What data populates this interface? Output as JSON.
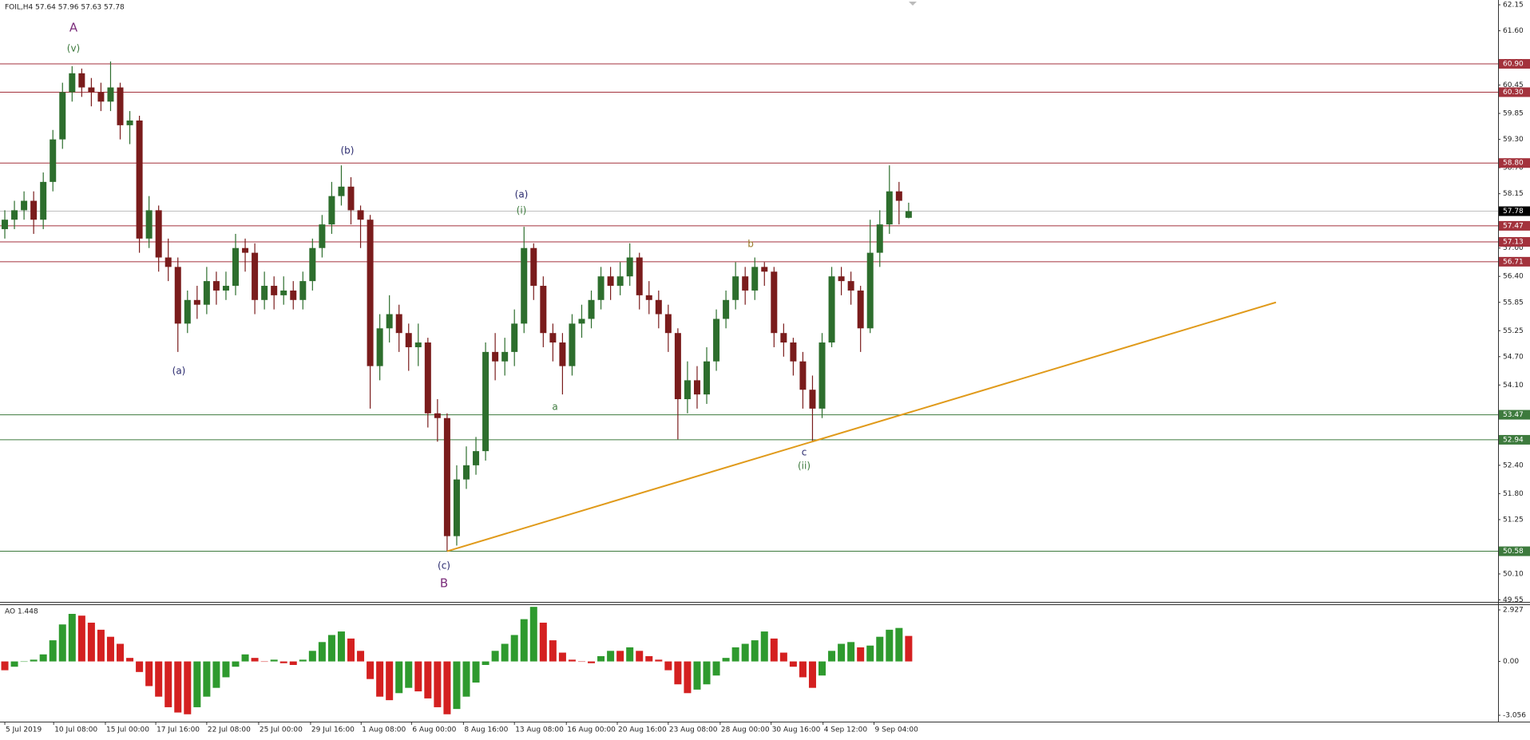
{
  "chart_data": [
    {
      "type": "candlestick",
      "title": "FOIL,H4 57.64 57.96 57.63 57.78",
      "open": [
        57.4,
        57.6,
        57.8,
        58.0,
        57.6,
        58.4,
        59.3,
        60.3,
        60.7,
        60.4,
        60.3,
        60.1,
        60.4,
        59.6,
        59.7,
        57.2,
        57.8,
        56.8,
        56.6,
        55.4,
        55.9,
        55.8,
        56.3,
        56.1,
        56.2,
        57.0,
        56.9,
        55.9,
        56.2,
        56.0,
        56.1,
        55.9,
        56.3,
        57.0,
        57.5,
        58.1,
        58.3,
        57.8,
        57.6,
        54.5,
        55.3,
        55.6,
        55.2,
        54.9,
        55.0,
        53.5,
        53.4,
        50.9,
        52.1,
        52.4,
        52.7,
        54.8,
        54.6,
        54.8,
        55.4,
        57.0,
        56.2,
        55.2,
        55.0,
        54.5,
        55.4,
        55.5,
        55.9,
        56.4,
        56.2,
        56.4,
        56.8,
        56.0,
        55.9,
        55.6,
        55.2,
        53.8,
        54.2,
        53.9,
        54.6,
        55.5,
        55.9,
        56.4,
        56.1,
        56.6,
        56.5,
        55.2,
        55.0,
        54.6,
        54.0,
        53.6,
        55.0,
        56.4,
        56.3,
        56.1,
        55.3,
        56.9,
        57.5,
        58.2,
        57.64
      ],
      "high": [
        57.8,
        58.0,
        58.2,
        58.2,
        58.6,
        59.5,
        60.5,
        60.85,
        60.8,
        60.6,
        60.5,
        60.95,
        60.5,
        59.9,
        59.8,
        58.1,
        57.9,
        57.2,
        56.8,
        56.1,
        56.2,
        56.6,
        56.5,
        56.5,
        57.3,
        57.2,
        57.1,
        56.5,
        56.4,
        56.4,
        56.3,
        56.5,
        57.2,
        57.7,
        58.4,
        58.75,
        58.5,
        57.9,
        57.7,
        55.6,
        56.0,
        55.8,
        55.4,
        55.4,
        55.1,
        53.8,
        53.5,
        52.4,
        52.8,
        53.0,
        55.0,
        55.2,
        55.1,
        55.7,
        57.45,
        57.1,
        56.4,
        55.4,
        55.2,
        55.6,
        55.8,
        56.1,
        56.6,
        56.6,
        56.7,
        57.1,
        56.9,
        56.3,
        56.1,
        55.8,
        55.3,
        54.6,
        54.5,
        54.9,
        55.7,
        56.1,
        56.7,
        56.6,
        56.8,
        56.7,
        56.6,
        55.4,
        55.1,
        54.8,
        54.3,
        55.2,
        56.6,
        56.6,
        56.5,
        56.2,
        57.6,
        57.8,
        58.75,
        58.4,
        57.96
      ],
      "low": [
        57.2,
        57.4,
        57.6,
        57.3,
        57.4,
        58.2,
        59.1,
        60.1,
        60.2,
        60.0,
        59.9,
        59.9,
        59.3,
        59.2,
        56.9,
        57.0,
        56.5,
        56.3,
        54.8,
        55.2,
        55.5,
        55.6,
        55.8,
        55.9,
        56.0,
        56.5,
        55.6,
        55.7,
        55.7,
        55.8,
        55.7,
        55.7,
        56.1,
        56.8,
        57.3,
        57.9,
        57.5,
        57.0,
        53.6,
        54.2,
        55.0,
        54.8,
        54.4,
        54.5,
        53.2,
        52.9,
        50.58,
        50.7,
        51.9,
        52.2,
        52.5,
        54.2,
        54.3,
        54.5,
        55.2,
        55.9,
        54.9,
        54.6,
        53.9,
        54.3,
        55.1,
        55.3,
        55.7,
        55.9,
        56.0,
        56.2,
        55.7,
        55.6,
        55.3,
        54.8,
        52.95,
        53.5,
        53.6,
        53.7,
        54.4,
        55.3,
        55.7,
        55.8,
        55.9,
        56.2,
        54.9,
        54.7,
        54.3,
        53.6,
        52.9,
        53.4,
        54.9,
        56.0,
        55.8,
        54.8,
        55.2,
        56.6,
        57.3,
        57.5,
        57.63
      ],
      "close": [
        57.6,
        57.8,
        58.0,
        57.6,
        58.4,
        59.3,
        60.3,
        60.7,
        60.4,
        60.3,
        60.1,
        60.4,
        59.6,
        59.7,
        57.2,
        57.8,
        56.8,
        56.6,
        55.4,
        55.9,
        55.8,
        56.3,
        56.1,
        56.2,
        57.0,
        56.9,
        55.9,
        56.2,
        56.0,
        56.1,
        55.9,
        56.3,
        57.0,
        57.5,
        58.1,
        58.3,
        57.8,
        57.6,
        54.5,
        55.3,
        55.6,
        55.2,
        54.9,
        55.0,
        53.5,
        53.4,
        50.9,
        52.1,
        52.4,
        52.7,
        54.8,
        54.6,
        54.8,
        55.4,
        57.0,
        56.2,
        55.2,
        55.0,
        54.5,
        55.4,
        55.5,
        55.9,
        56.4,
        56.2,
        56.4,
        56.8,
        56.0,
        55.9,
        55.6,
        55.2,
        53.8,
        54.2,
        53.9,
        54.6,
        55.5,
        55.9,
        56.4,
        56.1,
        56.6,
        56.5,
        55.2,
        55.0,
        54.6,
        54.0,
        53.6,
        55.0,
        56.4,
        56.3,
        56.1,
        55.3,
        56.9,
        57.5,
        58.2,
        58.0,
        57.78
      ],
      "up_color": "#2d6e2d",
      "down_color": "#7a1c1c",
      "xlim": [
        -0.5,
        155.3
      ],
      "ylim": [
        49.55,
        62.15
      ],
      "yticks": [
        62.15,
        {
          "value": 61.6,
          "label": "61.60"
        },
        60.45,
        59.85,
        {
          "value": 59.3,
          "label": "59.30"
        },
        {
          "value": 58.7,
          "label": "58.70"
        },
        58.15,
        {
          "value": 57,
          "label": "57.00"
        },
        {
          "value": 56.4,
          "label": "56.40"
        },
        55.85,
        55.25,
        {
          "value": 54.7,
          "label": "54.70"
        },
        {
          "value": 54.1,
          "label": "54.10"
        },
        {
          "value": 52.4,
          "label": "52.40"
        },
        {
          "value": 51.8,
          "label": "51.80"
        },
        51.25,
        {
          "value": 50.1,
          "label": "50.10"
        },
        49.55
      ],
      "xticks": [
        {
          "value": 0,
          "label": "5 Jul 2019"
        },
        {
          "value": 5.08,
          "label": "10 Jul 08:00"
        },
        {
          "value": 10.46,
          "label": "15 Jul 00:00"
        },
        {
          "value": 15.7,
          "label": "17 Jul 16:00"
        },
        {
          "value": 21,
          "label": "22 Jul 08:00"
        },
        {
          "value": 26.4,
          "label": "25 Jul 00:00"
        },
        {
          "value": 31.8,
          "label": "29 Jul 16:00"
        },
        {
          "value": 37.06,
          "label": "1 Aug 08:00"
        },
        {
          "value": 42.3,
          "label": "6 Aug 00:00"
        },
        {
          "value": 47.7,
          "label": "8 Aug 16:00"
        },
        {
          "value": 53,
          "label": "13 Aug 08:00"
        },
        {
          "value": 58.4,
          "label": "16 Aug 00:00"
        },
        {
          "value": 63.7,
          "label": "20 Aug 16:00"
        },
        {
          "value": 69,
          "label": "23 Aug 08:00"
        },
        {
          "value": 74.4,
          "label": "28 Aug 00:00"
        },
        {
          "value": 79.7,
          "label": "30 Aug 16:00"
        },
        {
          "value": 85.1,
          "label": "4 Sep 12:00"
        },
        {
          "value": 90.4,
          "label": "9 Sep 04:00"
        }
      ],
      "levels": [
        {
          "value": 60.9,
          "label": "60.90"
        },
        {
          "value": 60.3,
          "label": "60.30"
        },
        {
          "value": 58.8,
          "label": "58.80"
        },
        57.47,
        57.13,
        56.71,
        53.47,
        52.94,
        50.58
      ],
      "level_colors": [
        "#a3323c",
        "#a3323c",
        "#a3323c",
        "#a3323c",
        "#a3323c",
        "#a3323c",
        "#3d7a3d",
        "#3d7a3d",
        "#3d7a3d"
      ],
      "last": 57.78,
      "last_color": "#c0c0c0",
      "trendline": {
        "x": [
          46,
          132.2
        ],
        "y": [
          50.58,
          55.85
        ],
        "color": "#e09a1a"
      },
      "annotations": [
        {
          "text": "A",
          "color": "#7b2d7b"
        },
        {
          "text": "(v)",
          "color": "#3d7a3d"
        },
        {
          "text": "(a)",
          "color": "#2a2a6e"
        },
        {
          "text": "(b)",
          "color": "#2a2a6e"
        },
        {
          "text": "(c)",
          "color": "#2a2a6e"
        },
        {
          "text": "B",
          "color": "#7b2d7b"
        },
        {
          "text": "(a)",
          "color": "#2a2a6e"
        },
        {
          "text": "(i)",
          "color": "#3d7a3d"
        },
        {
          "text": "a",
          "color": "#3d7a3d"
        },
        {
          "text": "b",
          "color": "#9a7a2a"
        },
        {
          "text": "c",
          "color": "#2a2a6e"
        },
        {
          "text": "(ii)",
          "color": "#3d7a3d"
        }
      ]
    },
    {
      "type": "bar",
      "title": "AO 1.448",
      "values": [
        -0.5,
        -0.3,
        0.0,
        0.1,
        0.4,
        1.2,
        2.1,
        2.7,
        2.6,
        2.2,
        1.8,
        1.4,
        1.0,
        0.2,
        -0.6,
        -1.4,
        -2.0,
        -2.6,
        -2.9,
        -3.0,
        -2.6,
        -2.0,
        -1.5,
        -0.9,
        -0.3,
        0.4,
        0.2,
        0.0,
        0.1,
        -0.1,
        -0.2,
        0.1,
        0.6,
        1.1,
        1.5,
        1.7,
        1.3,
        0.6,
        -1.0,
        -2.0,
        -2.2,
        -1.8,
        -1.5,
        -1.7,
        -2.1,
        -2.6,
        -3.0,
        -2.7,
        -2.0,
        -1.2,
        -0.2,
        0.6,
        1.0,
        1.5,
        2.4,
        3.1,
        2.2,
        1.2,
        0.5,
        0.1,
        0.0,
        -0.1,
        0.3,
        0.6,
        0.6,
        0.8,
        0.6,
        0.3,
        0.1,
        -0.5,
        -1.3,
        -1.8,
        -1.6,
        -1.3,
        -0.8,
        0.2,
        0.8,
        1.0,
        1.2,
        1.7,
        1.3,
        0.5,
        -0.3,
        -0.9,
        -1.5,
        -0.8,
        0.6,
        1.0,
        1.1,
        0.8,
        0.9,
        1.4,
        1.8,
        1.9,
        1.448
      ],
      "up_color": "#2e9a2e",
      "down_color": "#d42020",
      "ylim": [
        -3.056,
        2.927
      ],
      "yticks": [
        2.927,
        {
          "value": 0,
          "label": "0.00"
        },
        -3.056
      ]
    }
  ]
}
